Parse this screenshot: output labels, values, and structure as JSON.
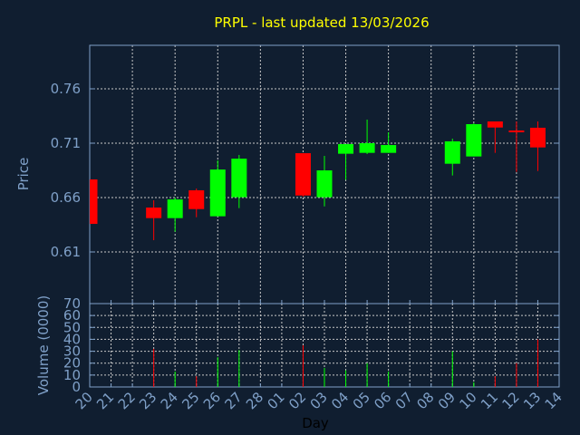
{
  "chart_data": [
    {
      "type": "candlestick",
      "title": "PRPL - last updated 13/03/2026",
      "ylabel": "Price",
      "ylim": [
        0.5625,
        0.8
      ],
      "yticks": [
        "0.61",
        "0.66",
        "0.71",
        "0.76"
      ],
      "ytick_values": [
        0.61,
        0.66,
        0.71,
        0.76
      ],
      "grid": true,
      "colors": {
        "up": "#00ff00",
        "down": "#ff0000"
      },
      "candles": [
        {
          "day": "20",
          "open": 0.6767,
          "high": 0.6767,
          "low": 0.6358,
          "close": 0.6358
        },
        {
          "day": "23",
          "open": 0.6508,
          "high": 0.6575,
          "low": 0.6208,
          "close": 0.6411
        },
        {
          "day": "24",
          "open": 0.6411,
          "high": 0.66,
          "low": 0.6286,
          "close": 0.6583
        },
        {
          "day": "25",
          "open": 0.6667,
          "high": 0.6683,
          "low": 0.6419,
          "close": 0.6494
        },
        {
          "day": "26",
          "open": 0.6428,
          "high": 0.6942,
          "low": 0.6428,
          "close": 0.6858
        },
        {
          "day": "27",
          "open": 0.6603,
          "high": 0.6992,
          "low": 0.6503,
          "close": 0.6958
        },
        {
          "day": "02",
          "open": 0.7008,
          "high": 0.7008,
          "low": 0.6608,
          "close": 0.6619
        },
        {
          "day": "03",
          "open": 0.6603,
          "high": 0.6983,
          "low": 0.6519,
          "close": 0.685
        },
        {
          "day": "04",
          "open": 0.7003,
          "high": 0.7092,
          "low": 0.6764,
          "close": 0.7092
        },
        {
          "day": "05",
          "open": 0.7011,
          "high": 0.7317,
          "low": 0.7,
          "close": 0.71
        },
        {
          "day": "06",
          "open": 0.7011,
          "high": 0.72,
          "low": 0.7011,
          "close": 0.7083
        },
        {
          "day": "09",
          "open": 0.6911,
          "high": 0.7142,
          "low": 0.6803,
          "close": 0.7117
        },
        {
          "day": "10",
          "open": 0.6978,
          "high": 0.7283,
          "low": 0.6978,
          "close": 0.7275
        },
        {
          "day": "11",
          "open": 0.73,
          "high": 0.73,
          "low": 0.7011,
          "close": 0.7244
        },
        {
          "day": "12",
          "open": 0.7217,
          "high": 0.73,
          "low": 0.6836,
          "close": 0.7213
        },
        {
          "day": "13",
          "open": 0.7242,
          "high": 0.73,
          "low": 0.6844,
          "close": 0.7061
        }
      ]
    },
    {
      "type": "bar",
      "ylabel": "Volume (0000)",
      "xlabel": "Day",
      "ylim": [
        0,
        70
      ],
      "yticks": [
        "0",
        "10",
        "20",
        "30",
        "40",
        "50",
        "60",
        "70"
      ],
      "categories": [
        "20",
        "21",
        "22",
        "23",
        "24",
        "25",
        "26",
        "27",
        "28",
        "01",
        "02",
        "03",
        "04",
        "05",
        "06",
        "07",
        "08",
        "09",
        "10",
        "11",
        "12",
        "13",
        "14"
      ],
      "volumes": [
        {
          "day": "23",
          "value": 32,
          "dir": "down"
        },
        {
          "day": "24",
          "value": 13,
          "dir": "up"
        },
        {
          "day": "25",
          "value": 9,
          "dir": "down"
        },
        {
          "day": "26",
          "value": 25,
          "dir": "up"
        },
        {
          "day": "27",
          "value": 31,
          "dir": "up"
        },
        {
          "day": "02",
          "value": 35,
          "dir": "down"
        },
        {
          "day": "03",
          "value": 16,
          "dir": "up"
        },
        {
          "day": "04",
          "value": 14,
          "dir": "up"
        },
        {
          "day": "05",
          "value": 20,
          "dir": "up"
        },
        {
          "day": "06",
          "value": 13,
          "dir": "up"
        },
        {
          "day": "09",
          "value": 30,
          "dir": "up"
        },
        {
          "day": "10",
          "value": 4,
          "dir": "up"
        },
        {
          "day": "11",
          "value": 9,
          "dir": "down"
        },
        {
          "day": "12",
          "value": 20,
          "dir": "down"
        },
        {
          "day": "13",
          "value": 40,
          "dir": "down"
        }
      ]
    }
  ]
}
